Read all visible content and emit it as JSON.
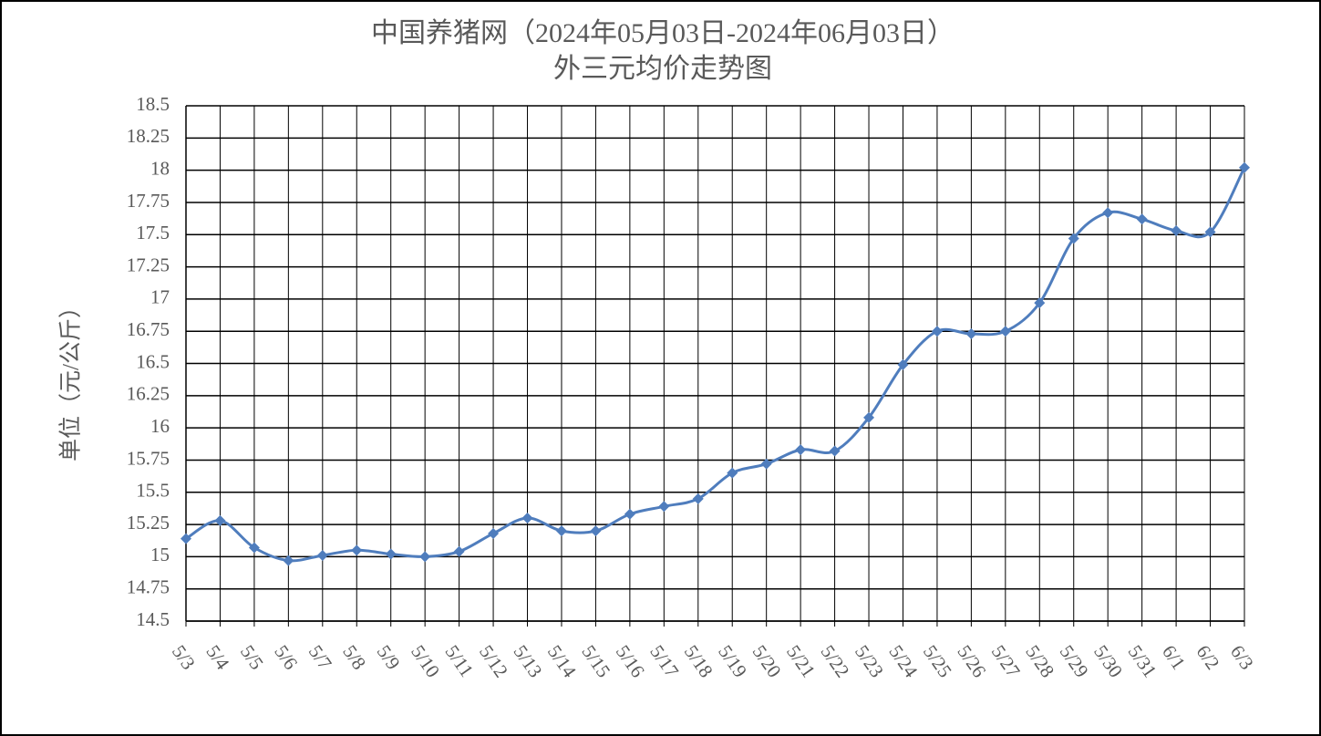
{
  "chart_data": {
    "type": "line",
    "title": "中国养猪网（2024年05月03日-2024年06月03日）",
    "subtitle": "外三元均价走势图",
    "y_label": "单位（元/公斤）",
    "categories": [
      "5/3",
      "5/4",
      "5/5",
      "5/6",
      "5/7",
      "5/8",
      "5/9",
      "5/10",
      "5/11",
      "5/12",
      "5/13",
      "5/14",
      "5/15",
      "5/16",
      "5/17",
      "5/18",
      "5/19",
      "5/20",
      "5/21",
      "5/22",
      "5/23",
      "5/24",
      "5/25",
      "5/26",
      "5/27",
      "5/28",
      "5/29",
      "5/30",
      "5/31",
      "6/1",
      "6/2",
      "6/3"
    ],
    "series": [
      {
        "name": "外三元均价",
        "color": "#4f7dbd",
        "values": [
          15.14,
          15.28,
          15.07,
          14.97,
          15.01,
          15.05,
          15.02,
          15.0,
          15.04,
          15.18,
          15.3,
          15.2,
          15.2,
          15.33,
          15.39,
          15.45,
          15.65,
          15.72,
          15.83,
          15.82,
          16.08,
          16.49,
          16.75,
          16.73,
          16.75,
          16.97,
          17.47,
          17.67,
          17.62,
          17.53,
          17.52,
          18.02
        ]
      }
    ],
    "ylim": [
      14.5,
      18.5
    ],
    "yticks": [
      14.5,
      14.75,
      15,
      15.25,
      15.5,
      15.75,
      16,
      16.25,
      16.5,
      16.75,
      17,
      17.25,
      17.5,
      17.75,
      18,
      18.25,
      18.5
    ],
    "grid": true
  }
}
